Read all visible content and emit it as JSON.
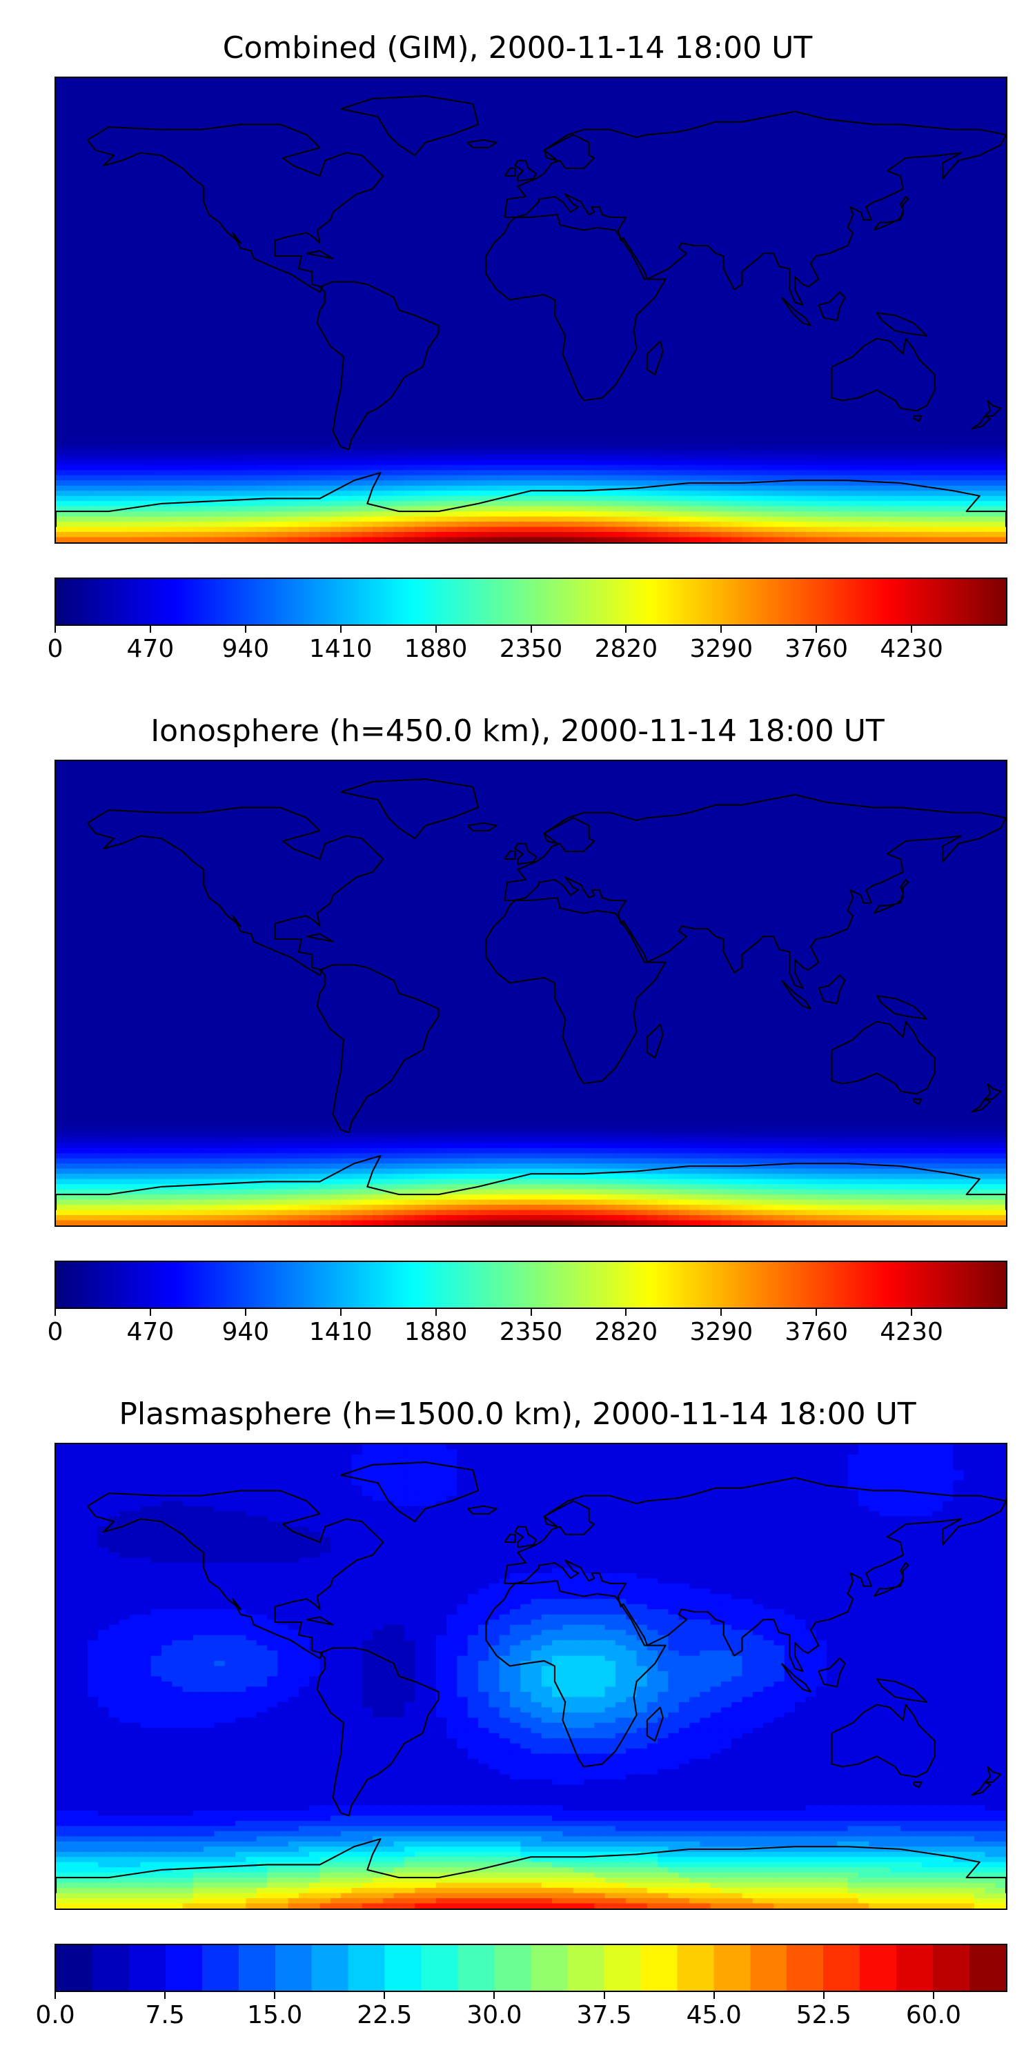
{
  "panels": [
    {
      "title": "Combined (GIM), 2000-11-14 18:00 UT",
      "field": "ionosphere",
      "colorbar": {
        "type": "continuous",
        "min": 0,
        "max": 4700,
        "ticks": [
          "0",
          "470",
          "940",
          "1410",
          "1880",
          "2350",
          "2820",
          "3290",
          "3760",
          "4230"
        ]
      }
    },
    {
      "title": "Ionosphere  (h=450.0 km), 2000-11-14 18:00 UT",
      "field": "ionosphere",
      "colorbar": {
        "type": "continuous",
        "min": 0,
        "max": 4700,
        "ticks": [
          "0",
          "470",
          "940",
          "1410",
          "1880",
          "2350",
          "2820",
          "3290",
          "3760",
          "4230"
        ]
      }
    },
    {
      "title": "Plasmasphere (h=1500.0 km), 2000-11-14 18:00 UT",
      "field": "plasmasphere",
      "colorbar": {
        "type": "discrete",
        "min": 0,
        "max": 65,
        "step": 2.5,
        "ticks": [
          "0.0",
          "7.5",
          "15.0",
          "22.5",
          "30.0",
          "37.5",
          "45.0",
          "52.5",
          "60.0"
        ]
      }
    }
  ],
  "colormap": "jet",
  "jet_stops": [
    "#00007f",
    "#0000ff",
    "#007fff",
    "#00ffff",
    "#7fff7f",
    "#ffff00",
    "#ff7f00",
    "#ff0000",
    "#7f0000"
  ]
}
